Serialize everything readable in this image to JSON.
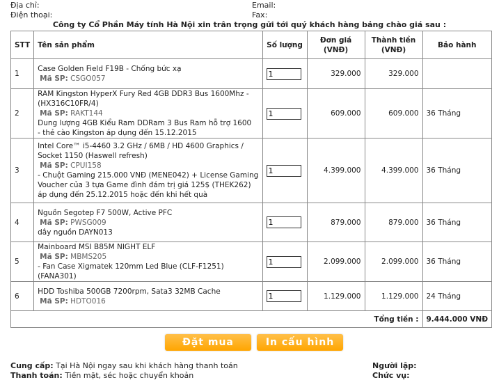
{
  "header": {
    "address_label": "Địa chỉ:",
    "phone_label": "Điện thoại:",
    "email_label": "Email:",
    "fax_label": "Fax:",
    "intro": "Công ty Cổ Phần Máy tính Hà Nội xin trân trọng gửi tới quý khách hàng bảng chào giá sau :"
  },
  "table": {
    "headers": {
      "stt": "STT",
      "name": "Tên sản phẩm",
      "qty": "Số lượng",
      "price": "Đơn giá (VNĐ)",
      "total": "Thành tiền (VNĐ)",
      "warranty": "Bảo hành"
    },
    "code_label": "Mã SP:",
    "rows": [
      {
        "stt": "1",
        "name": "Case Golden Field F19B - Chống bức xạ",
        "code": "CSGO057",
        "notes": "",
        "qty": "1",
        "price": "329.000",
        "total": "329.000",
        "warranty": ""
      },
      {
        "stt": "2",
        "name": "RAM Kingston HyperX Fury Red 4GB DDR3 Bus 1600Mhz - (HX316C10FR/4)",
        "code": "RAKT144",
        "notes": "Dung lượng 4GB Kiểu Ram DDRam 3 Bus Ram hỗ trợ 1600\n- thẻ cào Kingston áp dụng đến 15.12.2015",
        "qty": "1",
        "price": "609.000",
        "total": "609.000",
        "warranty": "36 Tháng"
      },
      {
        "stt": "3",
        "name": "Intel Core™ i5-4460 3.2 GHz / 6MB / HD 4600 Graphics / Socket 1150 (Haswell refresh)",
        "code": "CPUI158",
        "notes": "- Chuột Gaming 215.000 VNĐ (MENE042) + License Gaming Voucher của 3 tựa Game đình đám trị giá 125$ (THEK262) áp dụng đến 25.12.2015 hoặc đến khi hết quà",
        "qty": "1",
        "price": "4.399.000",
        "total": "4.399.000",
        "warranty": "36 Tháng"
      },
      {
        "stt": "4",
        "name": "Nguồn Segotep F7 500W, Active PFC",
        "code": "PWSG009",
        "notes": "dây nguồn DAYN013",
        "qty": "1",
        "price": "879.000",
        "total": "879.000",
        "warranty": "36 Tháng"
      },
      {
        "stt": "5",
        "name": "Mainboard MSI B85M NIGHT ELF",
        "code": "MBMS205",
        "notes": "- Fan Case Xigmatek 120mm Led Blue (CLF-F1251) (FANA301)",
        "qty": "1",
        "price": "2.099.000",
        "total": "2.099.000",
        "warranty": "36 Tháng"
      },
      {
        "stt": "6",
        "name": "HDD Toshiba 500GB 7200rpm, Sata3 32MB Cache",
        "code": "HDTO016",
        "notes": "",
        "qty": "1",
        "price": "1.129.000",
        "total": "1.129.000",
        "warranty": "24 Tháng"
      }
    ],
    "total_label": "Tổng tiền :",
    "total_value": "9.444.000 VNĐ"
  },
  "buttons": {
    "order": "Đặt mua",
    "print": "In cấu hình"
  },
  "footer": {
    "supply_label": "Cung cấp:",
    "supply_text": "Tại Hà Nội ngay sau khi khách hàng thanh toán",
    "payment_label": "Thanh toán:",
    "payment_text": "Tiền mặt, séc hoặc chuyển khoản",
    "creator_label": "Người lập:",
    "position_label": "Chức vụ:"
  }
}
